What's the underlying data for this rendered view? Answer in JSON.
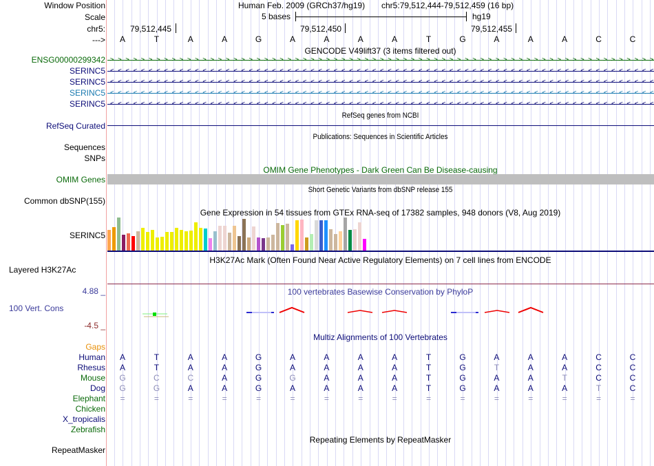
{
  "header": {
    "window_position_label": "Window Position",
    "assembly": "Human Feb. 2009 (GRCh37/hg19)",
    "position": "chr5:79,512,444-79,512,459 (16 bp)",
    "scale_label": "Scale",
    "scale_text": "5 bases",
    "scale_db": "hg19",
    "chrom_label": "chr5:",
    "coords": [
      "79,512,445",
      "79,512,450",
      "79,512,455"
    ],
    "strand_label": "--->",
    "bases": [
      "A",
      "T",
      "A",
      "A",
      "G",
      "A",
      "A",
      "A",
      "A",
      "T",
      "G",
      "A",
      "A",
      "A",
      "C",
      "C"
    ]
  },
  "tracks": {
    "gencode": {
      "title": "GENCODE V49lift37 (3 items filtered out)",
      "items": [
        {
          "name": "ENSG00000299342",
          "strand": "+",
          "color": "#0a6a0a"
        },
        {
          "name": "SERINC5",
          "strand": "-",
          "color": "#0c0c78"
        },
        {
          "name": "SERINC5",
          "strand": "-",
          "color": "#0c0c78"
        },
        {
          "name": "SERINC5",
          "strand": "-",
          "color": "#1a7ab0"
        },
        {
          "name": "SERINC5",
          "strand": "-",
          "color": "#0c0c78"
        }
      ]
    },
    "refseq": {
      "title": "RefSeq genes from NCBI",
      "label": "RefSeq Curated",
      "color": "#0c0c78"
    },
    "publications": {
      "title": "Publications: Sequences in Scientific Articles",
      "labels": [
        "Sequences",
        "SNPs"
      ]
    },
    "omim": {
      "title": "OMIM Gene Phenotypes - Dark Green Can Be Disease-causing",
      "label": "OMIM Genes",
      "color": "#0a6a0a",
      "bar_color": "#bebebe"
    },
    "dbsnp": {
      "title": "Short Genetic Variants from dbSNP release 155",
      "label": "Common dbSNP(155)"
    },
    "gtex": {
      "title": "Gene Expression in 54 tissues from GTEx RNA-seq of 17382 samples, 948 donors (V8, Aug 2019)",
      "label": "SERINC5",
      "bars": [
        {
          "color": "#ffa54f",
          "v": 0.62
        },
        {
          "color": "#ee9a00",
          "v": 0.7
        },
        {
          "color": "#8fbc8f",
          "v": 1.0
        },
        {
          "color": "#8b1c62",
          "v": 0.47
        },
        {
          "color": "#ee6a50",
          "v": 0.52
        },
        {
          "color": "#ff0000",
          "v": 0.43
        },
        {
          "color": "#cdb79e",
          "v": 0.58
        },
        {
          "color": "#eeee00",
          "v": 0.68
        },
        {
          "color": "#eeee00",
          "v": 0.56
        },
        {
          "color": "#eeee00",
          "v": 0.62
        },
        {
          "color": "#eeee00",
          "v": 0.4
        },
        {
          "color": "#eeee00",
          "v": 0.42
        },
        {
          "color": "#eeee00",
          "v": 0.56
        },
        {
          "color": "#eeee00",
          "v": 0.56
        },
        {
          "color": "#eeee00",
          "v": 0.68
        },
        {
          "color": "#eeee00",
          "v": 0.62
        },
        {
          "color": "#eeee00",
          "v": 0.58
        },
        {
          "color": "#eeee00",
          "v": 0.6
        },
        {
          "color": "#eeee00",
          "v": 0.86
        },
        {
          "color": "#eeee00",
          "v": 0.68
        },
        {
          "color": "#00cdcd",
          "v": 0.66
        },
        {
          "color": "#ee82ee",
          "v": 0.38
        },
        {
          "color": "#9ac0cd",
          "v": 0.58
        },
        {
          "color": "#eed5d2",
          "v": 0.76
        },
        {
          "color": "#eed5d2",
          "v": 0.76
        },
        {
          "color": "#cdb79e",
          "v": 0.54
        },
        {
          "color": "#eec591",
          "v": 0.76
        },
        {
          "color": "#8b7355",
          "v": 0.43
        },
        {
          "color": "#8b7355",
          "v": 0.95
        },
        {
          "color": "#cdaa7d",
          "v": 0.4
        },
        {
          "color": "#eed5d2",
          "v": 0.73
        },
        {
          "color": "#b452cd",
          "v": 0.4
        },
        {
          "color": "#7a378b",
          "v": 0.37
        },
        {
          "color": "#cdb79e",
          "v": 0.4
        },
        {
          "color": "#cdb79e",
          "v": 0.48
        },
        {
          "color": "#cdb79e",
          "v": 0.83
        },
        {
          "color": "#9acd32",
          "v": 0.78
        },
        {
          "color": "#cdb79e",
          "v": 0.82
        },
        {
          "color": "#7b68ee",
          "v": 0.18
        },
        {
          "color": "#ffd700",
          "v": 0.92
        },
        {
          "color": "#ffb6c1",
          "v": 0.94
        },
        {
          "color": "#cd9b1d",
          "v": 0.4
        },
        {
          "color": "#b4eeb4",
          "v": 0.5
        },
        {
          "color": "#d9d9d9",
          "v": 0.92
        },
        {
          "color": "#3a5fcd",
          "v": 0.92
        },
        {
          "color": "#1e90ff",
          "v": 0.92
        },
        {
          "color": "#cdb79e",
          "v": 0.65
        },
        {
          "color": "#cdb79e",
          "v": 0.5
        },
        {
          "color": "#ffd39b",
          "v": 0.58
        },
        {
          "color": "#a6a6a6",
          "v": 1.0
        },
        {
          "color": "#008b45",
          "v": 0.63
        },
        {
          "color": "#eed5d2",
          "v": 0.65
        },
        {
          "color": "#eed5d2",
          "v": 0.86
        },
        {
          "color": "#ff00ff",
          "v": 0.36
        }
      ]
    },
    "h3k27ac": {
      "title": "H3K27Ac Mark (Often Found Near Active Regulatory Elements) on 7 cell lines from ENCODE",
      "label": "Layered H3K27Ac"
    },
    "phylop": {
      "title": "100 vertebrates Basewise Conservation by PhyloP",
      "label": "100 Vert. Cons",
      "max_label": "4.88 _",
      "min_label": "-4.5 _",
      "color": "#3a3a9a",
      "min_color": "#8b2a2a"
    },
    "multiz": {
      "title": "Multiz Alignments of 100 Vertebrates",
      "gaps_label": "Gaps",
      "species": [
        {
          "name": "Human",
          "color": "#0c0c78",
          "seq": [
            "A",
            "T",
            "A",
            "A",
            "G",
            "A",
            "A",
            "A",
            "A",
            "T",
            "G",
            "A",
            "A",
            "A",
            "C",
            "C"
          ],
          "dim": []
        },
        {
          "name": "Rhesus",
          "color": "#0c0c78",
          "seq": [
            "A",
            "T",
            "A",
            "A",
            "G",
            "A",
            "A",
            "A",
            "A",
            "T",
            "G",
            "T",
            "A",
            "A",
            "C",
            "C"
          ],
          "dim": [
            11
          ]
        },
        {
          "name": "Mouse",
          "color": "#0a6a0a",
          "seq": [
            "G",
            "C",
            "C",
            "A",
            "G",
            "G",
            "A",
            "A",
            "A",
            "T",
            "G",
            "A",
            "A",
            "T",
            "C",
            "C"
          ],
          "dim": [
            0,
            1,
            2,
            5,
            13
          ]
        },
        {
          "name": "Dog",
          "color": "#0c0c78",
          "seq": [
            "G",
            "G",
            "A",
            "A",
            "G",
            "A",
            "A",
            "A",
            "A",
            "T",
            "G",
            "A",
            "A",
            "A",
            "T",
            "C"
          ],
          "dim": [
            0,
            1,
            14
          ]
        },
        {
          "name": "Elephant",
          "color": "#0a6a0a",
          "seq": [
            "=",
            "=",
            "=",
            "=",
            "=",
            "=",
            "=",
            "=",
            "=",
            "=",
            "=",
            "=",
            "=",
            "=",
            "=",
            "="
          ],
          "dim": [
            0,
            1,
            2,
            3,
            4,
            5,
            6,
            7,
            8,
            9,
            10,
            11,
            12,
            13,
            14,
            15
          ]
        },
        {
          "name": "Chicken",
          "color": "#0a6a0a",
          "seq": [],
          "dim": []
        },
        {
          "name": "X_tropicalis",
          "color": "#0c0c78",
          "seq": [],
          "dim": []
        },
        {
          "name": "Zebrafish",
          "color": "#0a6a0a",
          "seq": [],
          "dim": []
        }
      ]
    },
    "repeatmasker": {
      "title": "Repeating Elements by RepeatMasker",
      "label": "RepeatMasker"
    }
  }
}
